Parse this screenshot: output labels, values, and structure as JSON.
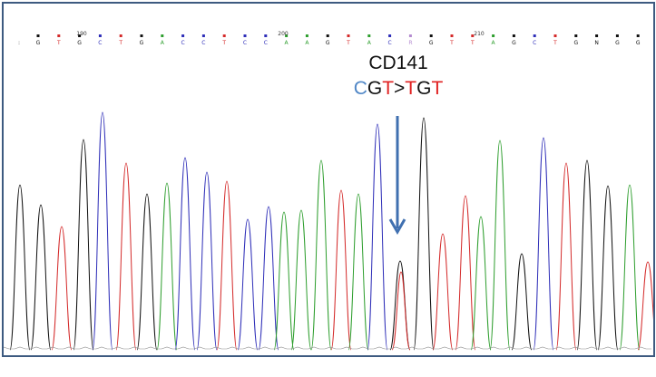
{
  "chromatogram": {
    "base_calls": [
      "G",
      "T",
      "G",
      "C",
      "T",
      "G",
      "A",
      "C",
      "C",
      "T",
      "C",
      "C",
      "A",
      "A",
      "G",
      "T",
      "A",
      "C",
      "R",
      "G",
      "T",
      "T",
      "A",
      "G",
      "C",
      "T",
      "G",
      "N",
      "G",
      "G"
    ],
    "position_labels": [
      "190",
      "200",
      "210"
    ],
    "base_colors": {
      "A": "#2e9e2e",
      "C": "#2e2eb8",
      "G": "#111111",
      "T": "#d42a2a",
      "R": "#b48bd0",
      "N": "#111111"
    }
  },
  "annotation": {
    "title": "CD141",
    "mutation": {
      "c1": "C",
      "g1": "G",
      "t1": "T",
      "sep": ">",
      "t2": "T",
      "g2": "G",
      "t3": "T",
      "colors": {
        "C": "#4f86c6",
        "G": "#111111",
        "T": "#e02020",
        "sep": "#111111"
      }
    },
    "arrow_color": "#4070b0"
  }
}
